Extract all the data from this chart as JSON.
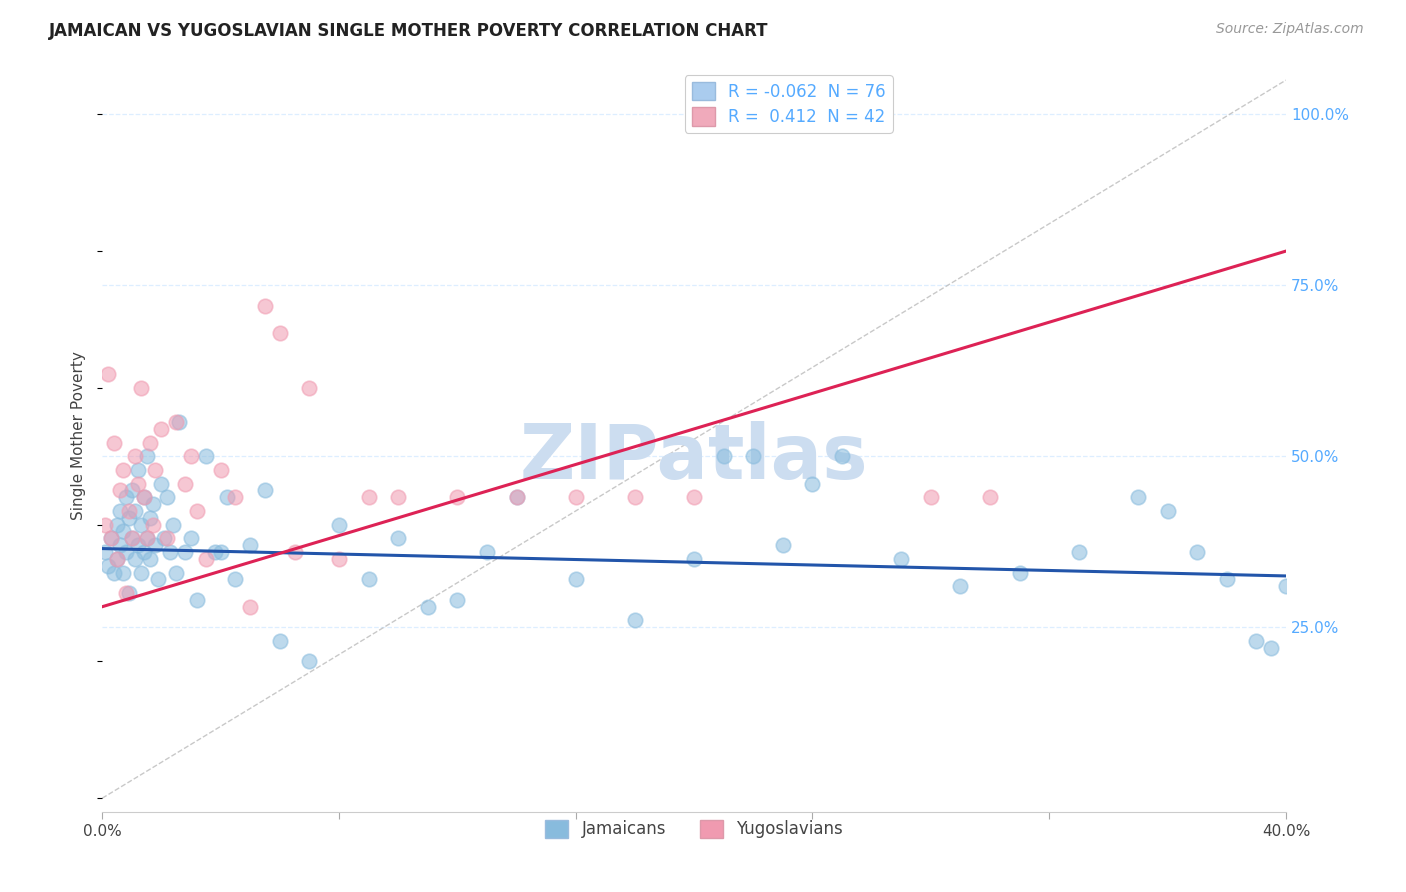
{
  "title": "JAMAICAN VS YUGOSLAVIAN SINGLE MOTHER POVERTY CORRELATION CHART",
  "source": "Source: ZipAtlas.com",
  "ylabel": "Single Mother Poverty",
  "y_ticks": [
    0.0,
    0.25,
    0.5,
    0.75,
    1.0
  ],
  "y_tick_labels": [
    "",
    "25.0%",
    "50.0%",
    "75.0%",
    "100.0%"
  ],
  "x_range": [
    0.0,
    0.4
  ],
  "y_range": [
    -0.02,
    1.08
  ],
  "legend_line1": "R = -0.062  N = 76",
  "legend_line2": "R =  0.412  N = 42",
  "background_color": "#ffffff",
  "watermark_text": "ZIPatlas",
  "watermark_color": "#ccddf0",
  "dot_color_jamaicans": "#88bbdd",
  "dot_color_yugoslavians": "#f09ab0",
  "line_color_jamaicans": "#2255aa",
  "line_color_yugoslavians": "#dd2255",
  "diag_line_color": "#bbbbbb",
  "grid_color": "#ddeeff",
  "title_fontsize": 12,
  "tick_label_color_right": "#55aaff",
  "legend_color_blue": "#aaccee",
  "legend_color_pink": "#f0aabb",
  "jamaicans_x": [
    0.001,
    0.002,
    0.003,
    0.004,
    0.005,
    0.005,
    0.006,
    0.006,
    0.007,
    0.007,
    0.008,
    0.008,
    0.009,
    0.009,
    0.01,
    0.01,
    0.011,
    0.011,
    0.012,
    0.012,
    0.013,
    0.013,
    0.014,
    0.014,
    0.015,
    0.015,
    0.016,
    0.016,
    0.017,
    0.018,
    0.019,
    0.02,
    0.021,
    0.022,
    0.023,
    0.024,
    0.025,
    0.026,
    0.028,
    0.03,
    0.032,
    0.035,
    0.038,
    0.04,
    0.042,
    0.045,
    0.05,
    0.055,
    0.06,
    0.07,
    0.08,
    0.09,
    0.1,
    0.11,
    0.12,
    0.13,
    0.14,
    0.16,
    0.18,
    0.2,
    0.21,
    0.22,
    0.23,
    0.24,
    0.25,
    0.27,
    0.29,
    0.31,
    0.33,
    0.35,
    0.36,
    0.37,
    0.38,
    0.39,
    0.395,
    0.4
  ],
  "jamaicans_y": [
    0.36,
    0.34,
    0.38,
    0.33,
    0.4,
    0.35,
    0.37,
    0.42,
    0.33,
    0.39,
    0.44,
    0.36,
    0.3,
    0.41,
    0.38,
    0.45,
    0.35,
    0.42,
    0.37,
    0.48,
    0.33,
    0.4,
    0.36,
    0.44,
    0.38,
    0.5,
    0.41,
    0.35,
    0.43,
    0.37,
    0.32,
    0.46,
    0.38,
    0.44,
    0.36,
    0.4,
    0.33,
    0.55,
    0.36,
    0.38,
    0.29,
    0.5,
    0.36,
    0.36,
    0.44,
    0.32,
    0.37,
    0.45,
    0.23,
    0.2,
    0.4,
    0.32,
    0.38,
    0.28,
    0.29,
    0.36,
    0.44,
    0.32,
    0.26,
    0.35,
    0.5,
    0.5,
    0.37,
    0.46,
    0.5,
    0.35,
    0.31,
    0.33,
    0.36,
    0.44,
    0.42,
    0.36,
    0.32,
    0.23,
    0.22,
    0.31
  ],
  "yugoslavians_x": [
    0.001,
    0.002,
    0.003,
    0.004,
    0.005,
    0.006,
    0.007,
    0.008,
    0.009,
    0.01,
    0.011,
    0.012,
    0.013,
    0.014,
    0.015,
    0.016,
    0.017,
    0.018,
    0.02,
    0.022,
    0.025,
    0.028,
    0.03,
    0.032,
    0.035,
    0.04,
    0.045,
    0.05,
    0.055,
    0.06,
    0.065,
    0.07,
    0.08,
    0.09,
    0.1,
    0.12,
    0.14,
    0.16,
    0.18,
    0.2,
    0.28,
    0.3
  ],
  "yugoslavians_y": [
    0.4,
    0.62,
    0.38,
    0.52,
    0.35,
    0.45,
    0.48,
    0.3,
    0.42,
    0.38,
    0.5,
    0.46,
    0.6,
    0.44,
    0.38,
    0.52,
    0.4,
    0.48,
    0.54,
    0.38,
    0.55,
    0.46,
    0.5,
    0.42,
    0.35,
    0.48,
    0.44,
    0.28,
    0.72,
    0.68,
    0.36,
    0.6,
    0.35,
    0.44,
    0.44,
    0.44,
    0.44,
    0.44,
    0.44,
    0.44,
    0.44,
    0.44
  ]
}
